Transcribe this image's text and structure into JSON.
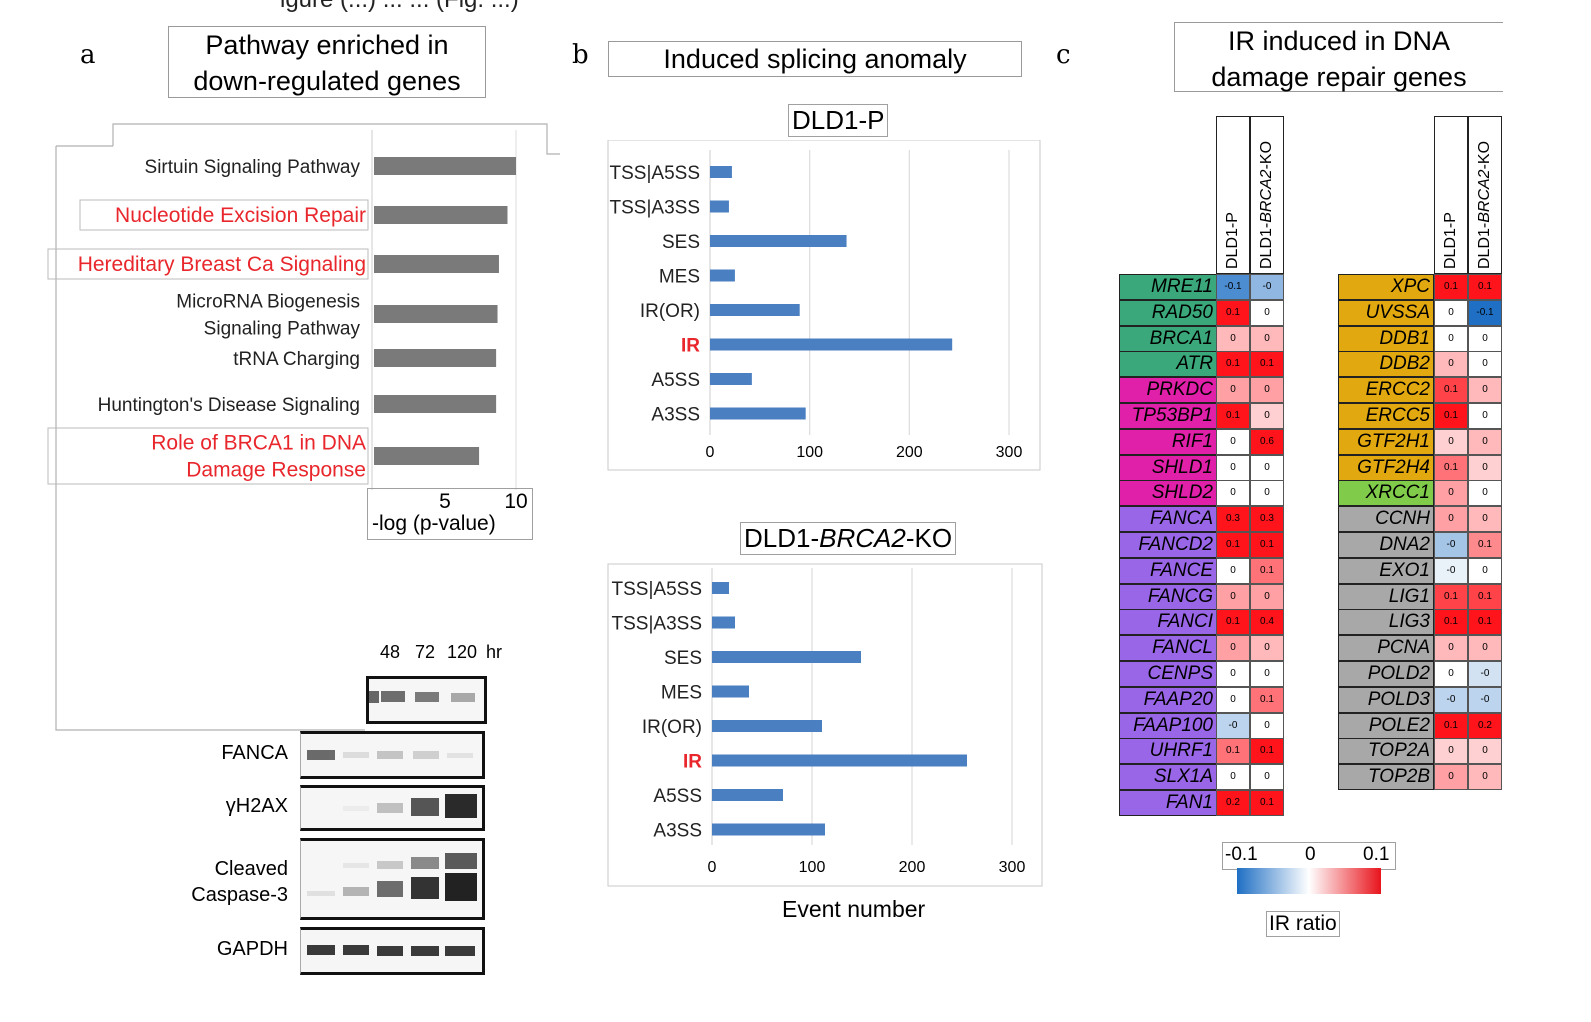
{
  "top_caption": "igure (...) ... ... (Fig. ...)",
  "panel_a": {
    "letter": "a",
    "title_line1": "Pathway enriched in",
    "title_line2": "down-regulated genes",
    "xlabel": "-log (p-value)"
  },
  "panel_b": {
    "letter": "b",
    "title": "Induced splicing anomaly",
    "chart1_title": "DLD1-P",
    "chart2_title_pre": "DLD1-",
    "chart2_title_it": "BRCA2",
    "chart2_title_post": "-KO",
    "xlabel": "Event number"
  },
  "panel_c": {
    "letter": "c",
    "title_line1": "IR induced in DNA",
    "title_line2": "damage repair genes",
    "col1": "DLD1-P",
    "col2_pre": "DLD1-",
    "col2_it": "BRCA2",
    "col2_post": "-KO",
    "legend_min": "-0.1",
    "legend_mid": "0",
    "legend_max": "0.1",
    "legend_title": "IR ratio"
  },
  "western": {
    "time_labels": [
      "48",
      "72",
      "120",
      "hr"
    ],
    "rows": [
      "FANCA",
      "γH2AX",
      "Cleaved",
      "Caspase-3",
      "GAPDH"
    ]
  },
  "colors": {
    "bar_gray": "#7a7a7a",
    "bar_blue": "#4a7fc2",
    "highlight_red": "#e8262c",
    "green": "#3aa87a",
    "magenta": "#e020a8",
    "purple": "#9a66e8",
    "orange": "#e2a810",
    "lightgreen": "#80cc4a",
    "gray": "#a8a8a8"
  },
  "chart_data": [
    {
      "type": "bar",
      "orientation": "horizontal",
      "categories": [
        "Sirtuin Signaling Pathway",
        "Nucleotide Excision Repair",
        "Hereditary Breast Ca Signaling",
        "MicroRNA Biogenesis Signaling Pathway",
        "tRNA Charging",
        "Huntington's Disease Signaling",
        "Role of BRCA1 in DNA Damage Response"
      ],
      "highlighted": [
        false,
        true,
        true,
        false,
        false,
        false,
        true
      ],
      "values": [
        10.0,
        9.4,
        8.8,
        8.7,
        8.6,
        8.6,
        7.4
      ],
      "xlabel": "-log (p-value)",
      "xticks": [
        "5",
        "10"
      ],
      "xlim": [
        0,
        10.5
      ]
    },
    {
      "type": "bar",
      "orientation": "horizontal",
      "title": "DLD1-P",
      "categories": [
        "TSS|A5SS",
        "TSS|A3SS",
        "SES",
        "MES",
        "IR(OR)",
        "IR",
        "A5SS",
        "A3SS"
      ],
      "highlighted": [
        false,
        false,
        false,
        false,
        false,
        true,
        false,
        false
      ],
      "values": [
        22,
        19,
        137,
        25,
        90,
        243,
        42,
        96
      ],
      "xticks": [
        "0",
        "100",
        "200",
        "300"
      ],
      "xlim": [
        0,
        300
      ],
      "grid": true
    },
    {
      "type": "bar",
      "orientation": "horizontal",
      "title": "DLD1-BRCA2-KO",
      "categories": [
        "TSS|A5SS",
        "TSS|A3SS",
        "SES",
        "MES",
        "IR(OR)",
        "IR",
        "A5SS",
        "A3SS"
      ],
      "highlighted": [
        false,
        false,
        false,
        false,
        false,
        true,
        false,
        false
      ],
      "values": [
        17,
        23,
        149,
        37,
        110,
        255,
        71,
        113
      ],
      "xticks": [
        "0",
        "100",
        "200",
        "300"
      ],
      "xlim": [
        0,
        300
      ],
      "xlabel": "Event number",
      "grid": true
    },
    {
      "type": "heatmap",
      "title": "IR induced in DNA damage repair genes",
      "columns": [
        "DLD1-P",
        "DLD1-BRCA2-KO"
      ],
      "legend_range": [
        -0.1,
        0.1
      ],
      "legend_title": "IR ratio",
      "left": [
        {
          "gene": "MRE11",
          "group": "green",
          "v": [
            -0.08,
            -0.05
          ],
          "t": [
            "-0.1",
            "-0"
          ]
        },
        {
          "gene": "RAD50",
          "group": "green",
          "v": [
            0.1,
            0.0
          ],
          "t": [
            "0.1",
            "0"
          ]
        },
        {
          "gene": "BRCA1",
          "group": "green",
          "v": [
            0.03,
            0.03
          ],
          "t": [
            "0",
            "0"
          ]
        },
        {
          "gene": "ATR",
          "group": "green",
          "v": [
            0.1,
            0.1
          ],
          "t": [
            "0.1",
            "0.1"
          ]
        },
        {
          "gene": "PRKDC",
          "group": "magenta",
          "v": [
            0.04,
            0.04
          ],
          "t": [
            "0",
            "0"
          ]
        },
        {
          "gene": "TP53BP1",
          "group": "magenta",
          "v": [
            0.1,
            0.02
          ],
          "t": [
            "0.1",
            "0"
          ]
        },
        {
          "gene": "RIF1",
          "group": "magenta",
          "v": [
            0.0,
            0.6
          ],
          "t": [
            "0",
            "0.6"
          ]
        },
        {
          "gene": "SHLD1",
          "group": "magenta",
          "v": [
            0.0,
            0.0
          ],
          "t": [
            "0",
            "0"
          ]
        },
        {
          "gene": "SHLD2",
          "group": "magenta",
          "v": [
            0.0,
            0.0
          ],
          "t": [
            "0",
            "0"
          ]
        },
        {
          "gene": "FANCA",
          "group": "purple",
          "v": [
            0.3,
            0.3
          ],
          "t": [
            "0.3",
            "0.3"
          ]
        },
        {
          "gene": "FANCD2",
          "group": "purple",
          "v": [
            0.1,
            0.1
          ],
          "t": [
            "0.1",
            "0.1"
          ]
        },
        {
          "gene": "FANCE",
          "group": "purple",
          "v": [
            0.0,
            0.06
          ],
          "t": [
            "0",
            "0.1"
          ]
        },
        {
          "gene": "FANCG",
          "group": "purple",
          "v": [
            0.04,
            0.04
          ],
          "t": [
            "0",
            "0"
          ]
        },
        {
          "gene": "FANCI",
          "group": "purple",
          "v": [
            0.1,
            0.4
          ],
          "t": [
            "0.1",
            "0.4"
          ]
        },
        {
          "gene": "FANCL",
          "group": "purple",
          "v": [
            0.04,
            0.03
          ],
          "t": [
            "0",
            "0"
          ]
        },
        {
          "gene": "CENPS",
          "group": "purple",
          "v": [
            0.0,
            0.0
          ],
          "t": [
            "0",
            "0"
          ]
        },
        {
          "gene": "FAAP20",
          "group": "purple",
          "v": [
            0.0,
            0.06
          ],
          "t": [
            "0",
            "0.1"
          ]
        },
        {
          "gene": "FAAP100",
          "group": "purple",
          "v": [
            -0.03,
            0.0
          ],
          "t": [
            "-0",
            "0"
          ]
        },
        {
          "gene": "UHRF1",
          "group": "purple",
          "v": [
            0.06,
            0.1
          ],
          "t": [
            "0.1",
            "0.1"
          ]
        },
        {
          "gene": "SLX1A",
          "group": "purple",
          "v": [
            0.0,
            0.0
          ],
          "t": [
            "0",
            "0"
          ]
        },
        {
          "gene": "FAN1",
          "group": "purple",
          "v": [
            0.2,
            0.1
          ],
          "t": [
            "0.2",
            "0.1"
          ]
        }
      ],
      "right": [
        {
          "gene": "XPC",
          "group": "orange",
          "v": [
            0.1,
            0.1
          ],
          "t": [
            "0.1",
            "0.1"
          ]
        },
        {
          "gene": "UVSSA",
          "group": "orange",
          "v": [
            0.0,
            -0.1
          ],
          "t": [
            "0",
            "-0.1"
          ]
        },
        {
          "gene": "DDB1",
          "group": "orange",
          "v": [
            0.0,
            0.0
          ],
          "t": [
            "0",
            "0"
          ]
        },
        {
          "gene": "DDB2",
          "group": "orange",
          "v": [
            0.03,
            0.0
          ],
          "t": [
            "0",
            "0"
          ]
        },
        {
          "gene": "ERCC2",
          "group": "orange",
          "v": [
            0.08,
            0.03
          ],
          "t": [
            "0.1",
            "0"
          ]
        },
        {
          "gene": "ERCC5",
          "group": "orange",
          "v": [
            0.1,
            0.0
          ],
          "t": [
            "0.1",
            "0"
          ]
        },
        {
          "gene": "GTF2H1",
          "group": "orange",
          "v": [
            0.02,
            0.03
          ],
          "t": [
            "0",
            "0"
          ]
        },
        {
          "gene": "GTF2H4",
          "group": "orange",
          "v": [
            0.06,
            0.02
          ],
          "t": [
            "0.1",
            "0"
          ]
        },
        {
          "gene": "XRCC1",
          "group": "lightgreen",
          "v": [
            0.04,
            0.0
          ],
          "t": [
            "0",
            "0"
          ]
        },
        {
          "gene": "CCNH",
          "group": "gray",
          "v": [
            0.04,
            0.03
          ],
          "t": [
            "0",
            "0"
          ]
        },
        {
          "gene": "DNA2",
          "group": "gray",
          "v": [
            -0.04,
            0.05
          ],
          "t": [
            "-0",
            "0.1"
          ]
        },
        {
          "gene": "EXO1",
          "group": "gray",
          "v": [
            -0.01,
            0.0
          ],
          "t": [
            "-0",
            "0"
          ]
        },
        {
          "gene": "LIG1",
          "group": "gray",
          "v": [
            0.08,
            0.08
          ],
          "t": [
            "0.1",
            "0.1"
          ]
        },
        {
          "gene": "LIG3",
          "group": "gray",
          "v": [
            0.1,
            0.1
          ],
          "t": [
            "0.1",
            "0.1"
          ]
        },
        {
          "gene": "PCNA",
          "group": "gray",
          "v": [
            0.03,
            0.03
          ],
          "t": [
            "0",
            "0"
          ]
        },
        {
          "gene": "POLD2",
          "group": "gray",
          "v": [
            0.0,
            -0.02
          ],
          "t": [
            "0",
            "-0"
          ]
        },
        {
          "gene": "POLD3",
          "group": "gray",
          "v": [
            -0.03,
            -0.03
          ],
          "t": [
            "-0",
            "-0"
          ]
        },
        {
          "gene": "POLE2",
          "group": "gray",
          "v": [
            0.1,
            0.2
          ],
          "t": [
            "0.1",
            "0.2"
          ]
        },
        {
          "gene": "TOP2A",
          "group": "gray",
          "v": [
            0.02,
            0.02
          ],
          "t": [
            "0",
            "0"
          ]
        },
        {
          "gene": "TOP2B",
          "group": "gray",
          "v": [
            0.04,
            0.03
          ],
          "t": [
            "0",
            "0"
          ]
        }
      ]
    }
  ]
}
